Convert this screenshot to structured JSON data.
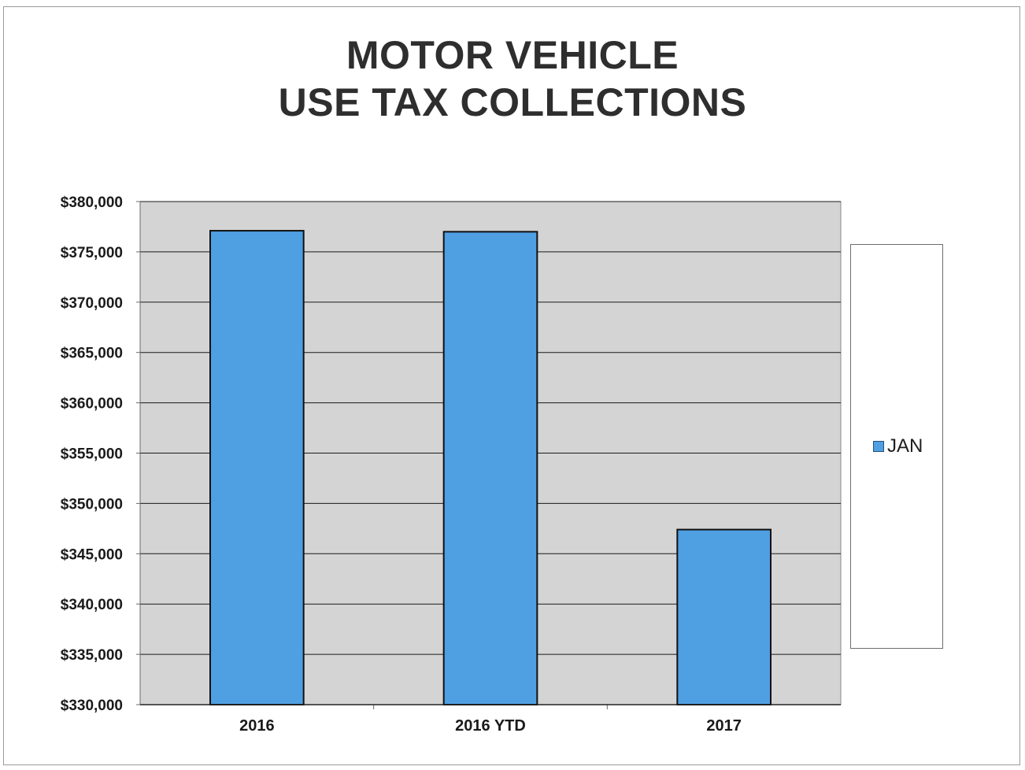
{
  "chart_data": {
    "type": "bar",
    "title_lines": [
      "MOTOR VEHICLE",
      "USE TAX COLLECTIONS"
    ],
    "categories": [
      "2016",
      "2016 YTD",
      "2017"
    ],
    "series": [
      {
        "name": "JAN",
        "values": [
          377100,
          377000,
          347400
        ]
      }
    ],
    "ylim": [
      330000,
      380000
    ],
    "yticks": [
      330000,
      335000,
      340000,
      345000,
      350000,
      355000,
      360000,
      365000,
      370000,
      375000,
      380000
    ],
    "ytick_labels": [
      "$330,000",
      "$335,000",
      "$340,000",
      "$345,000",
      "$350,000",
      "$355,000",
      "$360,000",
      "$365,000",
      "$370,000",
      "$375,000",
      "$380,000"
    ],
    "grid": true,
    "legend": "right",
    "colors": {
      "bar": "#4f9fe3",
      "bar_border": "#111111",
      "plot_background": "#d4d4d4",
      "gridline": "#1a1a1a",
      "legend_swatch": "#4f9fe3"
    }
  }
}
